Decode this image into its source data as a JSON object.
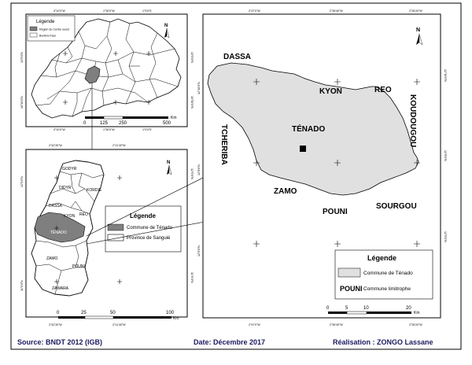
{
  "overview": {
    "legend_title": "Légende",
    "legend_items": [
      "Région du Centre ouest",
      "Burkina Faso"
    ],
    "scale_ticks": [
      "0",
      "125",
      "250",
      "500"
    ],
    "scale_unit": "Km",
    "coords_top": [
      "4°10'0\"W",
      "1°30'0\"W",
      "1°0'0\"E"
    ],
    "coords_bottom": [
      "4°10'0\"W",
      "1°30'0\"W",
      "1°0'0\"E"
    ],
    "coords_left": [
      "13°0'0\"N",
      "10°30'0\"N"
    ],
    "coords_right": [
      "13°0'0\"N",
      "10°30'0\"N"
    ]
  },
  "province": {
    "labels": [
      "GODYR",
      "DIDYR",
      "KORDIÉ",
      "DASSA",
      "KYON",
      "RÉO",
      "TÉNADO",
      "ZAMO",
      "POUNI",
      "ZAWARA"
    ],
    "legend_title": "Légende",
    "legend_items": [
      "Commune de Ténado",
      "Province de Sanguié"
    ],
    "scale_ticks": [
      "0",
      "25",
      "50",
      "100"
    ],
    "scale_unit": "Km",
    "coords_top": [
      "2°42'30\"W",
      "2°11'40\"W"
    ],
    "coords_bottom": [
      "2°42'30\"W",
      "2°11'40\"W"
    ],
    "coords_left": [
      "12°0'0\"N",
      "11°0'0\"N"
    ],
    "coords_right": [
      "12°0'0\"N",
      "11°0'0\"N"
    ]
  },
  "commune": {
    "neighbors": {
      "dassa": "DASSA",
      "kyon": "KYON",
      "reo": "REO",
      "koudougou": "KOUDOUGOU",
      "tcheriba": "TCHERIBA",
      "tenado": "TÉNADO",
      "zamo": "ZAMO",
      "pouni": "POUNI",
      "sourgou": "SOURGOU"
    },
    "legend_title": "Légende",
    "legend_fill_label": "Commune de Ténado",
    "legend_pouni_word": "POUNI",
    "legend_pouni_label": "Commune limitrophe",
    "scale_ticks": [
      "0",
      "5",
      "10",
      "20"
    ],
    "scale_unit": "Km",
    "coords_top": [
      "2°47'0\"W",
      "2°36'40\"W",
      "2°26'20\"W"
    ],
    "coords_bottom": [
      "2°47'0\"W",
      "2°36'40\"W",
      "2°26'20\"W"
    ],
    "coords_left": [
      "12°16'0\"N",
      "12°8'0\"N",
      "12°0'0\"N"
    ],
    "coords_right": [
      "12°16'0\"N",
      "12°8'0\"N",
      "12°0'0\"N"
    ]
  },
  "footer": {
    "source": "Source: BNDT 2012 (IGB)",
    "date": "Date: Décembre 2017",
    "author": "Réalisation : ZONGO Lassane"
  },
  "colors": {
    "tenado_fill": "#e0e0e0",
    "highlight_fill": "#7f7f7f",
    "footer_text": "#1a1a5e"
  }
}
